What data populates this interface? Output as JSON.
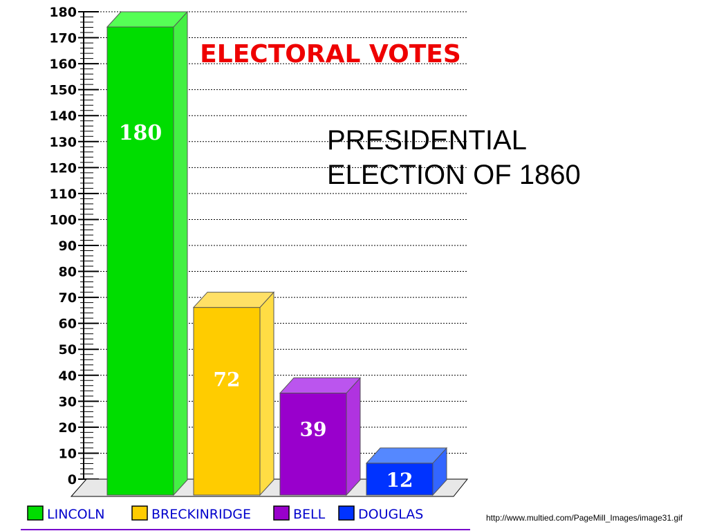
{
  "slide": {
    "title": "PRESIDENTIAL\nELECTION OF 1860",
    "source": "http://www.multied.com/PageMill_Images/image31.gif"
  },
  "chart_data": {
    "type": "bar",
    "title": "ELECTORAL VOTES",
    "categories": [
      "LINCOLN",
      "BRECKINRIDGE",
      "BELL",
      "DOUGLAS"
    ],
    "values": [
      180,
      72,
      39,
      12
    ],
    "value_labels": [
      "180",
      "72",
      "39",
      "12"
    ],
    "y_ticks": [
      "0",
      "10",
      "20",
      "30",
      "40",
      "50",
      "60",
      "70",
      "80",
      "90",
      "100",
      "110",
      "120",
      "130",
      "140",
      "150",
      "160",
      "170",
      "180"
    ],
    "ylim": [
      0,
      180
    ],
    "grid": true,
    "legend_position": "bottom",
    "colors": [
      "#00dd00",
      "#ffcc00",
      "#9900cc",
      "#0033ff"
    ],
    "side_colors": [
      "#44f044",
      "#ffdd44",
      "#b033e0",
      "#3366ff"
    ],
    "top_colors": [
      "#55ff55",
      "#ffe066",
      "#bb55ee",
      "#5588ff"
    ],
    "title_color": "#ee0000",
    "baseline_color": "#7700cc"
  }
}
